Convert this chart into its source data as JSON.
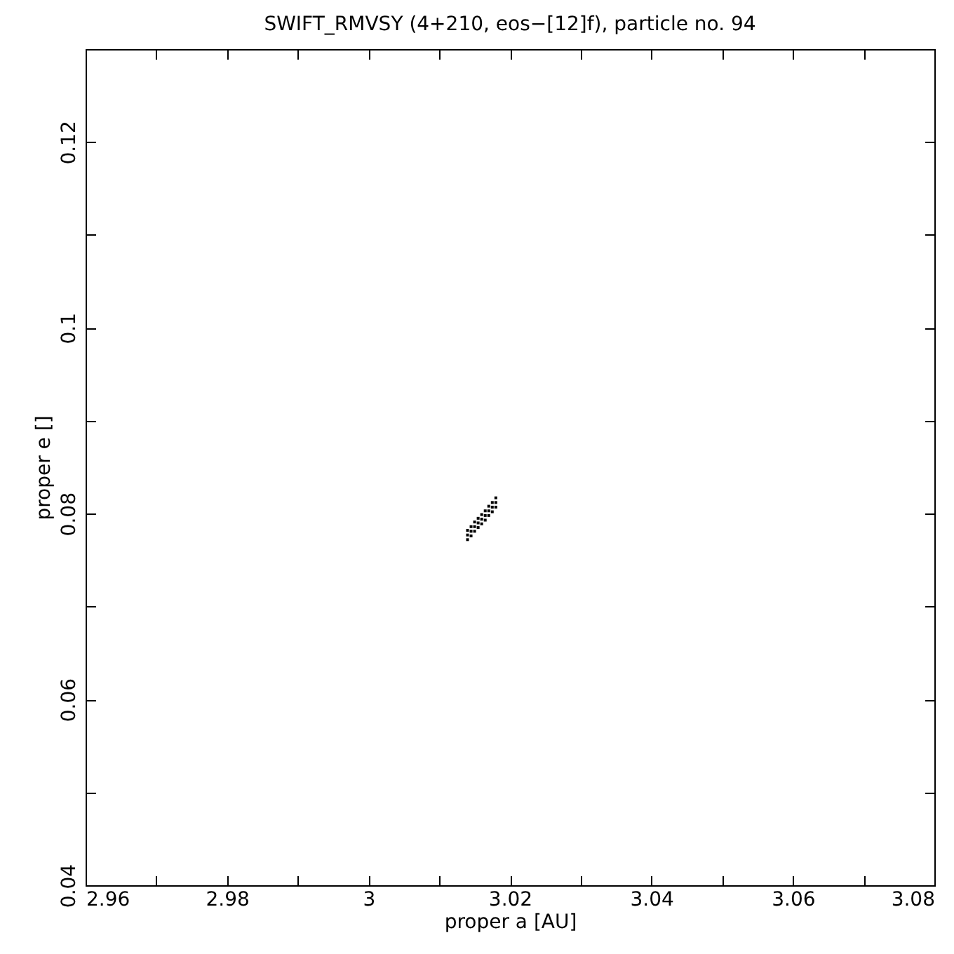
{
  "chart_data": {
    "type": "scatter",
    "title": "SWIFT_RMVSY (4+210, eos−[12]f), particle no. 94",
    "xlabel": "proper a [AU]",
    "ylabel": "proper e []",
    "x": [
      3.014,
      3.014,
      3.014,
      3.0145,
      3.0145,
      3.0145,
      3.015,
      3.015,
      3.015,
      3.0155,
      3.0155,
      3.0155,
      3.016,
      3.016,
      3.016,
      3.0165,
      3.0165,
      3.0165,
      3.017,
      3.017,
      3.017,
      3.0175,
      3.0175,
      3.0175,
      3.018,
      3.018,
      3.018
    ],
    "series": [
      {
        "color": "#000000",
        "values": [
          0.0772,
          0.0777,
          0.0782,
          0.0776,
          0.0781,
          0.0786,
          0.0781,
          0.0786,
          0.0791,
          0.0785,
          0.079,
          0.0795,
          0.0789,
          0.0794,
          0.0799,
          0.0793,
          0.0798,
          0.0803,
          0.0798,
          0.0803,
          0.0808,
          0.0802,
          0.0807,
          0.0812,
          0.0807,
          0.0812,
          0.0817
        ]
      }
    ],
    "marker": "square",
    "grid": false,
    "legend": false,
    "xlim": [
      2.96,
      3.08
    ],
    "xticks": [
      2.96,
      {
        "value": 2.97,
        "label": null
      },
      2.98,
      {
        "value": 2.99,
        "label": null
      },
      3,
      {
        "value": 3.01,
        "label": null
      },
      3.02,
      {
        "value": 3.03,
        "label": null
      },
      3.04,
      {
        "value": 3.05,
        "label": null
      },
      3.06,
      {
        "value": 3.07,
        "label": null
      },
      3.08
    ],
    "ylim": [
      0.04,
      0.13
    ],
    "yticks": [
      0.04,
      {
        "value": 0.05,
        "label": null
      },
      0.06,
      {
        "value": 0.07,
        "label": null
      },
      0.08,
      {
        "value": 0.09,
        "label": null
      },
      0.1,
      {
        "value": 0.11,
        "label": null
      },
      0.12,
      {
        "value": 0.13,
        "label": null
      }
    ]
  }
}
